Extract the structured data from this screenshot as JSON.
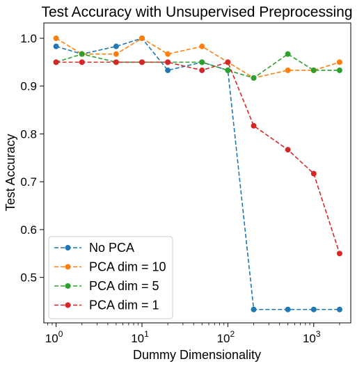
{
  "chart_data": {
    "type": "line",
    "title": "Test Accuracy with Unsupervised Preprocessing",
    "xlabel": "Dummy Dimensionality",
    "ylabel": "Test Accuracy",
    "x_scale": "log",
    "xlim": [
      0.72,
      2700
    ],
    "ylim": [
      0.405,
      1.032
    ],
    "x_ticks": [
      {
        "value": 1,
        "base": "10",
        "exp": "0"
      },
      {
        "value": 10,
        "base": "10",
        "exp": "1"
      },
      {
        "value": 100,
        "base": "10",
        "exp": "2"
      },
      {
        "value": 1000,
        "base": "10",
        "exp": "3"
      }
    ],
    "y_ticks": [
      {
        "value": 0.5,
        "label": "0.5"
      },
      {
        "value": 0.6,
        "label": "0.6"
      },
      {
        "value": 0.7,
        "label": "0.7"
      },
      {
        "value": 0.8,
        "label": "0.8"
      },
      {
        "value": 0.9,
        "label": "0.9"
      },
      {
        "value": 1.0,
        "label": "1.0"
      }
    ],
    "x": [
      1,
      2,
      5,
      10,
      20,
      50,
      100,
      200,
      500,
      1000,
      2000
    ],
    "series": [
      {
        "name": "No PCA",
        "color": "#1f77b4",
        "values": [
          0.983,
          0.967,
          0.983,
          1.0,
          0.933,
          0.95,
          0.933,
          0.433,
          0.433,
          0.433,
          0.433
        ]
      },
      {
        "name": "PCA dim = 10",
        "color": "#ff7f0e",
        "values": [
          1.0,
          0.967,
          0.967,
          1.0,
          0.967,
          0.983,
          0.95,
          0.917,
          0.933,
          0.933,
          0.95
        ]
      },
      {
        "name": "PCA dim = 5",
        "color": "#2ca02c",
        "values": [
          0.95,
          0.967,
          0.95,
          0.95,
          0.95,
          0.95,
          0.933,
          0.917,
          0.967,
          0.933,
          0.933
        ]
      },
      {
        "name": "PCA dim = 1",
        "color": "#d62728",
        "values": [
          0.95,
          0.95,
          0.95,
          0.95,
          0.95,
          0.933,
          0.95,
          0.817,
          0.767,
          0.717,
          0.55
        ]
      }
    ],
    "grid": false,
    "legend_position": "bottom-left",
    "line_style": "dashed",
    "marker": "circle"
  }
}
